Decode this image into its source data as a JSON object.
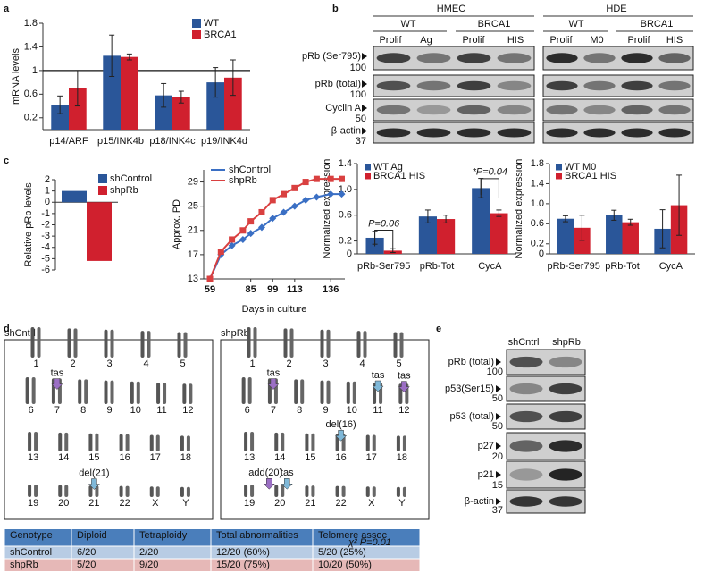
{
  "panel_letters": [
    "a",
    "b",
    "c",
    "d",
    "e"
  ],
  "chart_data": [
    {
      "type": "bar",
      "ylabel": "mRNA levels",
      "categories": [
        "p14/ARF",
        "p15/INK4b",
        "p18/INK4c",
        "p19/INK4d"
      ],
      "series": [
        {
          "name": "WT",
          "color": "#2a5699",
          "values": [
            0.42,
            1.25,
            0.58,
            0.8
          ],
          "errors": [
            0.15,
            0.35,
            0.2,
            0.25
          ]
        },
        {
          "name": "BRCA1",
          "color": "#d0202e",
          "values": [
            0.7,
            1.23,
            0.55,
            0.88
          ],
          "errors": [
            0.3,
            0.05,
            0.1,
            0.3
          ]
        }
      ],
      "ylim": [
        0,
        1.8
      ],
      "yticks": [
        0.2,
        0.6,
        1,
        1.4,
        1.8
      ],
      "reference_line": 1,
      "legend": "upper right"
    },
    {
      "type": "bar",
      "ylabel": "Normalized expression",
      "categories": [
        "pRb-Ser795",
        "pRb-Tot",
        "CycA"
      ],
      "series": [
        {
          "name": "WT Ag",
          "color": "#2a5699",
          "values": [
            0.25,
            0.58,
            1.02
          ],
          "errors": [
            0.1,
            0.1,
            0.15
          ]
        },
        {
          "name": "BRCA1 HIS",
          "color": "#d0202e",
          "values": [
            0.05,
            0.54,
            0.63
          ],
          "errors": [
            0.03,
            0.06,
            0.05
          ]
        }
      ],
      "ylim": [
        0,
        1.4
      ],
      "yticks": [
        0,
        0.2,
        0.6,
        {
          "value": 1,
          "label": "1.0"
        },
        1.4
      ],
      "annotations": [
        "P=0.06",
        "*P=0.04"
      ],
      "legend": "upper left"
    },
    {
      "type": "bar",
      "ylabel": "Normalized expression",
      "categories": [
        "pRb-Ser795",
        "pRb-Tot",
        "CycA"
      ],
      "series": [
        {
          "name": "WT M0",
          "color": "#2a5699",
          "values": [
            0.7,
            0.77,
            0.5
          ],
          "errors": [
            0.06,
            0.1,
            0.38
          ]
        },
        {
          "name": "BRCA1 HIS",
          "color": "#d0202e",
          "values": [
            0.52,
            0.63,
            0.97
          ],
          "errors": [
            0.25,
            0.06,
            0.6
          ]
        }
      ],
      "ylim": [
        0,
        1.8
      ],
      "yticks": [
        0,
        0.2,
        0.6,
        {
          "value": 1,
          "label": "1.0"
        },
        1.4,
        1.8
      ],
      "legend": "upper left"
    },
    {
      "type": "bar",
      "ylabel": "Relative pRb levels",
      "categories": [
        null
      ],
      "series": [
        {
          "name": "shControl",
          "color": "#2a5699",
          "values": [
            1
          ]
        },
        {
          "name": "shpRb",
          "color": "#d0202e",
          "values": [
            -5.2
          ]
        }
      ],
      "ylim": [
        -6,
        2
      ],
      "yticks": [
        -6,
        -5,
        -4,
        -3,
        -2,
        -1,
        0,
        1,
        2
      ],
      "legend": "right"
    },
    {
      "type": "line",
      "ylabel": "Approx. PD",
      "xlabel": "Days in culture",
      "x": [
        59,
        66,
        73,
        80,
        85,
        92,
        99,
        106,
        113,
        120,
        127,
        136,
        143
      ],
      "series": [
        {
          "name": "shControl",
          "color": "#3a6fc4",
          "values": [
            13,
            17,
            18.5,
            19.5,
            20.5,
            21.5,
            23,
            24,
            25,
            26,
            26.5,
            27,
            27
          ]
        },
        {
          "name": "shpRb",
          "color": "#d94040",
          "values": [
            13,
            17.5,
            19.5,
            21,
            22.5,
            24,
            26,
            27,
            28,
            29,
            29.5,
            29.5,
            29.5
          ]
        }
      ],
      "xlim": [
        55,
        145
      ],
      "xticks": [
        59,
        85,
        99,
        113,
        136
      ],
      "ylim": [
        13,
        31
      ],
      "yticks": [
        13,
        17,
        21,
        25,
        29
      ],
      "legend": "upper left"
    }
  ],
  "blot_b": {
    "cell_lines": [
      "HMEC",
      "HDE"
    ],
    "groups": [
      "WT",
      "BRCA1",
      "WT",
      "BRCA1"
    ],
    "lanes": [
      "Prolif",
      "Ag",
      "Prolif",
      "HIS",
      "Prolif",
      "M0",
      "Prolif",
      "HIS"
    ],
    "rows": [
      "pRb (Ser795)",
      "pRb (total)",
      "Cyclin A",
      "β-actin"
    ],
    "markers": [
      "100",
      "100",
      "50",
      "37"
    ]
  },
  "karyotype": {
    "titles": [
      "shCntrl",
      "shpRb"
    ],
    "chromosomes": [
      "1",
      "2",
      "3",
      "4",
      "5",
      "6",
      "7",
      "8",
      "9",
      "10",
      "11",
      "12",
      "13",
      "14",
      "15",
      "16",
      "17",
      "18",
      "19",
      "20",
      "21",
      "22",
      "X",
      "Y"
    ],
    "annotations_left": [
      "tas",
      "del(21)"
    ],
    "annotations_right": [
      "tas",
      "tas",
      "tas",
      "del(16)",
      "add(20)",
      "tas"
    ]
  },
  "table": {
    "header": [
      "Genotype",
      "Diploid",
      "Tetraploidy",
      "Total abnormalities",
      "Telomere assoc"
    ],
    "note": "χ² P=0.01",
    "rows": [
      [
        "shControl",
        "6/20",
        "2/20",
        "12/20 (60%)",
        "5/20 (25%)"
      ],
      [
        "shpRb",
        "5/20",
        "9/20",
        "15/20 (75%)",
        "10/20 (50%)"
      ]
    ]
  },
  "blot_e": {
    "lanes": [
      "shCntrl",
      "shpRb"
    ],
    "rows": [
      "pRb (total)",
      "p53(Ser15)",
      "p53 (total)",
      "p27",
      "p21",
      "β-actin"
    ],
    "markers": [
      "100",
      "50",
      "50",
      "20",
      "15",
      "37"
    ]
  }
}
